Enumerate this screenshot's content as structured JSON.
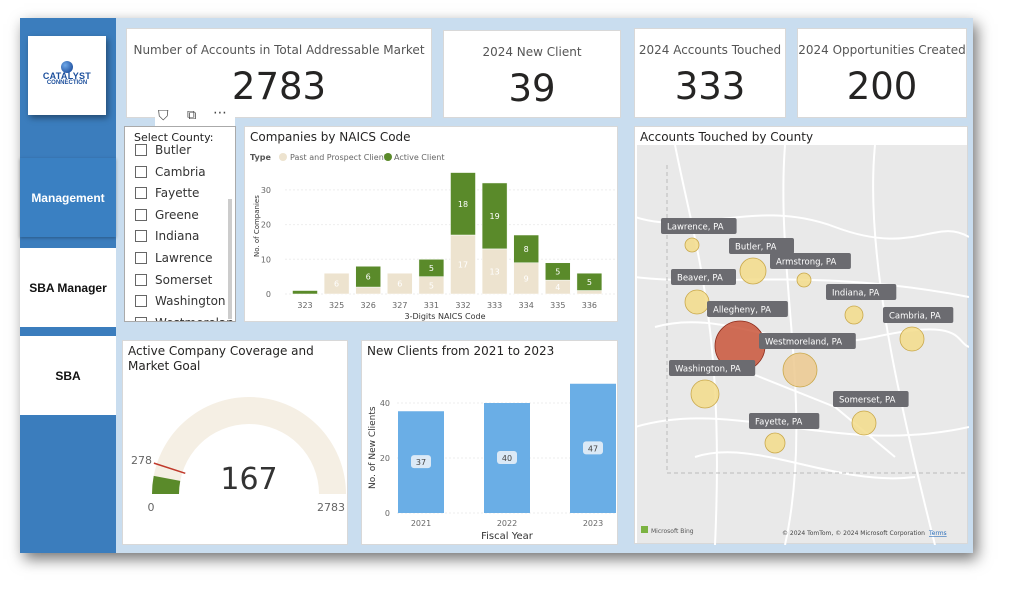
{
  "sidebar": {
    "logo": {
      "line1": "CATALYST",
      "line2": "CONNECTION"
    },
    "items": [
      {
        "label": "Management",
        "active": true
      },
      {
        "label": "SBA Manager",
        "active": false
      },
      {
        "label": "SBA",
        "active": false
      }
    ]
  },
  "kpis": [
    {
      "label": "Number of Accounts in Total Addressable Market",
      "value": "2783"
    },
    {
      "label": "2024 New Client",
      "value": "39"
    },
    {
      "label": "2024 Accounts Touched",
      "value": "333"
    },
    {
      "label": "2024 Opportunities Created",
      "value": "200"
    }
  ],
  "slicer": {
    "title": "Select County:",
    "items": [
      "Butler",
      "Cambria",
      "Fayette",
      "Greene",
      "Indiana",
      "Lawrence",
      "Somerset",
      "Washington",
      "Westmoreland"
    ]
  },
  "colors": {
    "sidebar": "#3b7dbd",
    "past": "#ede3cf",
    "active": "#5a8a2a",
    "newclients": "#6aaee6",
    "bubble": "#f3dc8a",
    "bubble_max": "#c9553a",
    "gauge_fill": "#5a8a2a",
    "gauge_track": "#f5efe4",
    "gauge_target": "#c0392b"
  },
  "chart_data": [
    {
      "type": "bar",
      "stacked": true,
      "title": "Companies by NAICS Code",
      "legend_title": "Type",
      "legend_position": "top-left",
      "xlabel": "3-Digits NAICS Code",
      "ylabel": "No. of Companies",
      "categories": [
        "323",
        "325",
        "326",
        "327",
        "331",
        "332",
        "333",
        "334",
        "335",
        "336"
      ],
      "series": [
        {
          "name": "Past and Prospect Client",
          "values": [
            0,
            6,
            2,
            6,
            5,
            17,
            13,
            9,
            4,
            1
          ]
        },
        {
          "name": "Active Client",
          "values": [
            1,
            0,
            6,
            0,
            5,
            18,
            19,
            8,
            5,
            5
          ]
        }
      ],
      "yticks": [
        "0",
        "10",
        "20",
        "30"
      ],
      "ylim": [
        0,
        35
      ]
    },
    {
      "type": "gauge",
      "title": "Active Company Coverage and Market Goal",
      "value": 167,
      "min": 0,
      "max": 2783,
      "target": 278,
      "value_label": "167",
      "min_label": "0",
      "max_label": "2783",
      "target_label": "278"
    },
    {
      "type": "bar",
      "title": "New Clients from 2021 to 2023",
      "xlabel": "Fiscal Year",
      "ylabel": "No. of New Clients",
      "categories": [
        "2021",
        "2022",
        "2023"
      ],
      "values": [
        37,
        40,
        47
      ],
      "yticks": [
        "0",
        "20",
        "40"
      ],
      "ylim": [
        0,
        48
      ]
    }
  ],
  "map": {
    "title": "Accounts Touched by County",
    "counties": [
      "Lawrence, PA",
      "Butler, PA",
      "Armstrong, PA",
      "Beaver, PA",
      "Indiana, PA",
      "Allegheny, PA",
      "Cambria, PA",
      "Westmoreland, PA",
      "Washington, PA",
      "Somerset, PA",
      "Fayette, PA"
    ],
    "attribution": "© 2024 TomTom, © 2024 Microsoft Corporation",
    "terms": "Terms",
    "brand": "Microsoft Bing"
  }
}
